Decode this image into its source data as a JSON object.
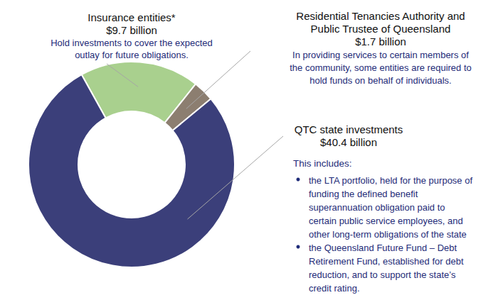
{
  "chart_data": {
    "type": "donut",
    "categories": [
      "Insurance entities*",
      "Residential Tenancies Authority and\nPublic Trustee of Queensland",
      "QTC state investments"
    ],
    "values": [
      9.7,
      1.7,
      40.4
    ],
    "value_labels": [
      "$9.7 billion",
      "$1.7 billion",
      "$40.4 billion"
    ],
    "colors": [
      "#a9d08e",
      "#8c7e70",
      "#3b3f7a"
    ],
    "data_labels": true,
    "descriptions": [
      {
        "text": "Hold investments to cover the expected\noutlay for future obligations."
      },
      {
        "text": "In providing services to certain members of\nthe community, some entities are required to\nhold funds on behalf of individuals."
      },
      {
        "text": "This includes:",
        "bullets": [
          "the LTA portfolio, held for the purpose of\nfunding the defined benefit\nsuperannuation obligation paid to\ncertain public service employees, and\nother long-term obligations of the state",
          "the Queensland Future Fund – Debt\nRetirement Fund, established for debt\nreduction, and to support the state’s\ncredit rating."
        ]
      }
    ]
  }
}
